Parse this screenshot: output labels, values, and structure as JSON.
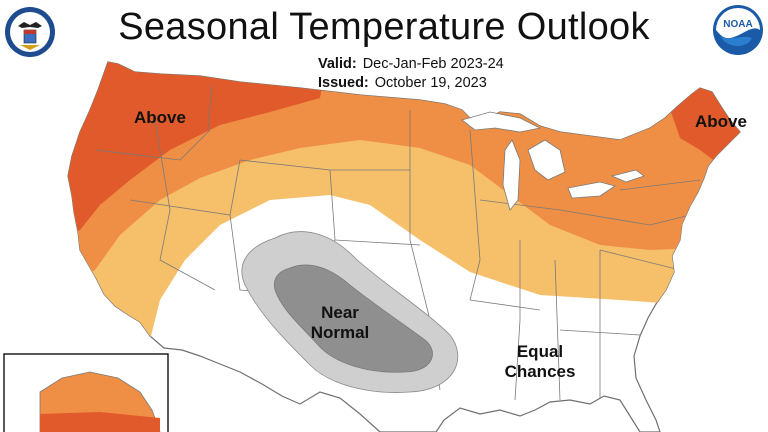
{
  "title": "Seasonal Temperature Outlook",
  "valid_label": "Valid:",
  "valid_value": "Dec-Jan-Feb 2023-24",
  "issued_label": "Issued:",
  "issued_value": "October 19, 2023",
  "logos": {
    "left": "department-of-commerce-seal",
    "right": "noaa-logo",
    "noaa_text": "NOAA"
  },
  "regions": {
    "above_west": "Above",
    "above_east": "Above",
    "near_normal_line1": "Near",
    "near_normal_line2": "Normal",
    "equal_chances_line1": "Equal",
    "equal_chances_line2": "Chances"
  },
  "colors": {
    "above_strong": "#e05a2b",
    "above_medium": "#ef8f45",
    "above_light": "#f6bf6a",
    "near_normal_light": "#cfcfcf",
    "near_normal_dark": "#8f8f8f",
    "equal_chances": "#ffffff",
    "water": "#ffffff",
    "borders": "#7f7f7f"
  }
}
